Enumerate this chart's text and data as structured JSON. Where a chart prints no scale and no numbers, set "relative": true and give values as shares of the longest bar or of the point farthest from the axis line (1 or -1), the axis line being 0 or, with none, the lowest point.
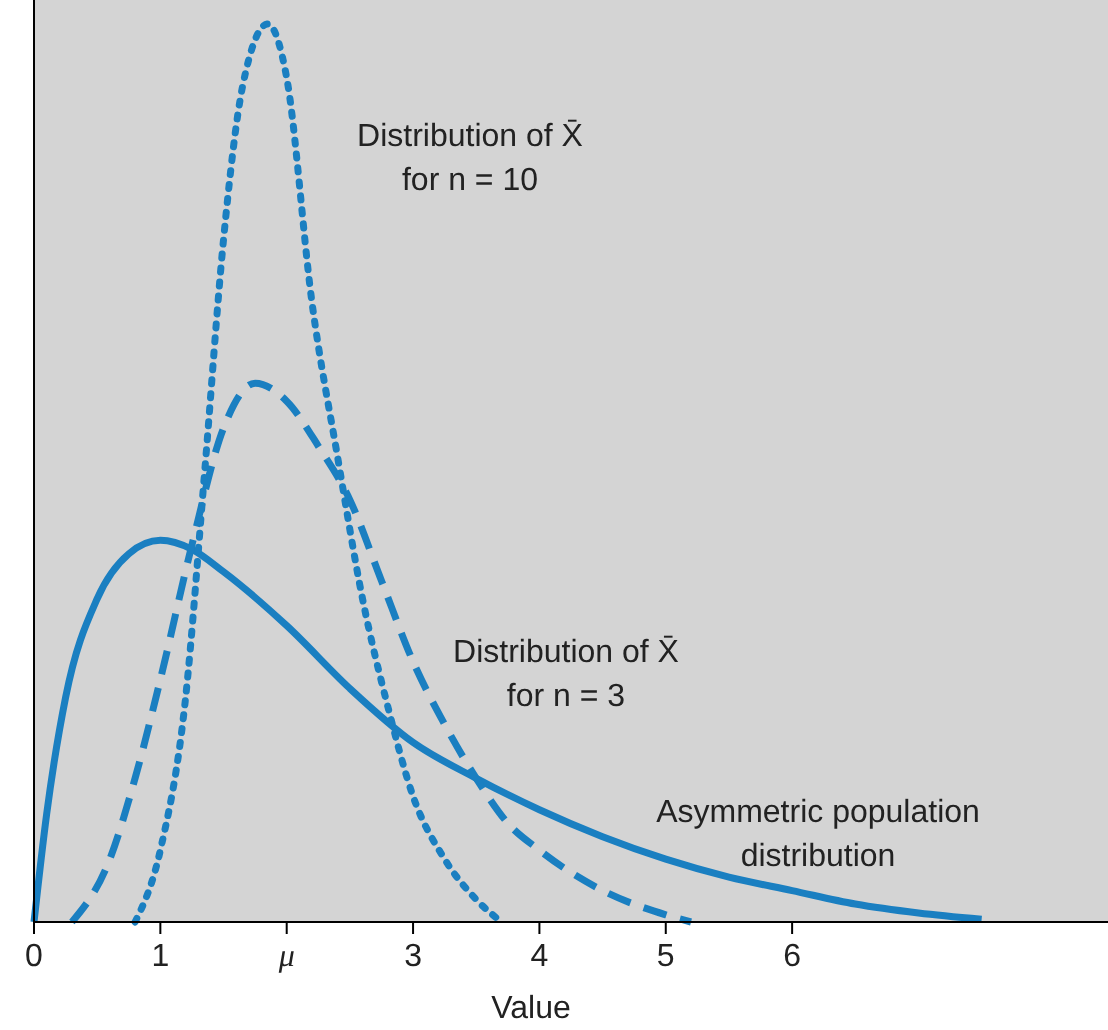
{
  "chart_data": {
    "type": "line",
    "relative": true,
    "xlabel": "Value",
    "xlim": [
      0,
      8.5
    ],
    "xticks": [
      0,
      1,
      {
        "value": 2,
        "label": "μ"
      },
      3,
      4,
      5,
      6
    ],
    "series": [
      {
        "color": "#1a7fc1",
        "line_style": "solid",
        "x": [
          0,
          0.1,
          0.25,
          0.5,
          0.75,
          1,
          1.25,
          1.5,
          2,
          2.5,
          3,
          3.5,
          4,
          4.5,
          5,
          5.5,
          6,
          6.5,
          7,
          7.5
        ],
        "values": [
          0,
          0.12,
          0.25,
          0.36,
          0.41,
          0.425,
          0.415,
          0.39,
          0.33,
          0.26,
          0.2,
          0.16,
          0.125,
          0.095,
          0.07,
          0.05,
          0.035,
          0.02,
          0.01,
          0.003
        ]
      },
      {
        "color": "#1a7fc1",
        "line_style": "dashed",
        "x": [
          0.3,
          0.6,
          0.8,
          1,
          1.25,
          1.5,
          1.75,
          2,
          2.25,
          2.5,
          2.75,
          3,
          3.25,
          3.5,
          3.75,
          4,
          4.5,
          5,
          5.2
        ],
        "values": [
          0,
          0.07,
          0.16,
          0.27,
          0.42,
          0.55,
          0.6,
          0.58,
          0.53,
          0.47,
          0.38,
          0.29,
          0.22,
          0.16,
          0.11,
          0.08,
          0.035,
          0.008,
          0
        ]
      },
      {
        "color": "#1a7fc1",
        "line_style": "dotted",
        "x": [
          0.8,
          1,
          1.2,
          1.35,
          1.5,
          1.65,
          1.85,
          2,
          2.2,
          2.4,
          2.6,
          2.8,
          3,
          3.25,
          3.5,
          3.7
        ],
        "values": [
          0,
          0.08,
          0.25,
          0.5,
          0.76,
          0.93,
          1,
          0.94,
          0.69,
          0.52,
          0.36,
          0.24,
          0.14,
          0.07,
          0.025,
          0
        ]
      }
    ],
    "annotations": [
      "Distribution of X̄\nfor n = 10",
      "Distribution of X̄\nfor n = 3",
      "Asymmetric population\ndistribution"
    ]
  }
}
